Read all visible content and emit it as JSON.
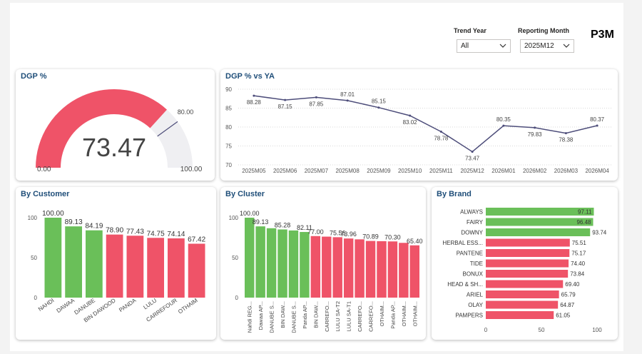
{
  "header": {
    "p3m_label": "P3M",
    "trend_year": {
      "label": "Trend Year",
      "value": "All"
    },
    "reporting_month": {
      "label": "Reporting Month",
      "value": "2025M12"
    }
  },
  "colors": {
    "green": "#6abf59",
    "red": "#ef5368",
    "gauge_track": "#efeff2",
    "line": "#4d4d7a",
    "title": "#1f4e79"
  },
  "gauge": {
    "title": "DGP %",
    "value": 73.47,
    "value_label": "73.47",
    "min_label": "0.00",
    "max_label": "100.00",
    "target_label": "80.00",
    "min": 0,
    "max": 100,
    "target": 80
  },
  "chart_data": [
    {
      "type": "line",
      "title": "DGP % vs YA",
      "x": [
        "2025M05",
        "2025M06",
        "2025M07",
        "2025M08",
        "2025M09",
        "2025M10",
        "2025M11",
        "2025M12",
        "2026M01",
        "2026M02",
        "2026M03",
        "2026M04"
      ],
      "values": [
        88.28,
        87.15,
        87.85,
        87.01,
        85.15,
        83.02,
        78.78,
        73.47,
        80.35,
        79.83,
        78.38,
        80.37
      ],
      "labels": [
        "88.28",
        "87.15",
        "87.85",
        "87.01",
        "85.15",
        "83.02",
        "78.78",
        "73.47",
        "80.35",
        "79.83",
        "78.38",
        "80.37"
      ],
      "yticks": [
        "90",
        "85",
        "80",
        "75",
        "70"
      ],
      "ylim": [
        70,
        90
      ],
      "grid": true
    },
    {
      "type": "bar",
      "title": "By Customer",
      "categories": [
        "NAHDI",
        "DAWAA",
        "DANUBE",
        "BIN DAWOOD",
        "PANDA",
        "LULU",
        "CARREFOUR",
        "OTHAIM"
      ],
      "values": [
        100.0,
        89.13,
        84.19,
        78.9,
        77.43,
        74.75,
        74.14,
        67.42
      ],
      "labels": [
        "100.00",
        "89.13",
        "84.19",
        "78.90",
        "77.43",
        "74.75",
        "74.14",
        "67.42"
      ],
      "colors": [
        "green",
        "green",
        "green",
        "red",
        "red",
        "red",
        "red",
        "red"
      ],
      "yticks": [
        "100",
        "50",
        "0"
      ],
      "ylim": [
        0,
        100
      ]
    },
    {
      "type": "bar",
      "title": "By Cluster",
      "categories": [
        "Nahdi REG...",
        "Dawaa AP...",
        "DANUBE S...",
        "BIN DAW...",
        "DANUBE S...",
        "Panda AP...",
        "BIN DAW...",
        "CARREFO...",
        "LULU SA-T2",
        "LULU SA-T1",
        "CARREFO...",
        "CARREFO...",
        "OTHAIM...",
        "Panda AP...",
        "OTHAIM...",
        "OTHAIM..."
      ],
      "values": [
        100.0,
        89.13,
        86.8,
        85.28,
        84.0,
        82.11,
        77.0,
        76.3,
        75.56,
        73.96,
        72.9,
        70.89,
        70.6,
        70.3,
        68.5,
        65.4
      ],
      "labels": [
        "100.00",
        "89.13",
        "",
        "85.28",
        "",
        "82.11",
        "77.00",
        "",
        "75.56",
        "73.96",
        "",
        "70.89",
        "",
        "70.30",
        "",
        "65.40"
      ],
      "colors": [
        "green",
        "green",
        "green",
        "green",
        "green",
        "green",
        "red",
        "red",
        "red",
        "red",
        "red",
        "red",
        "red",
        "red",
        "red",
        "red"
      ],
      "yticks": [
        "100",
        "50",
        "0"
      ],
      "ylim": [
        0,
        100
      ]
    },
    {
      "type": "bar",
      "orientation": "horizontal",
      "title": "By Brand",
      "categories": [
        "ALWAYS",
        "FAIRY",
        "DOWNY",
        "HERBAL ESS...",
        "PANTENE",
        "TIDE",
        "BONUX",
        "HEAD & SH...",
        "ARIEL",
        "OLAY",
        "PAMPERS"
      ],
      "values": [
        97.11,
        96.48,
        93.74,
        75.51,
        75.17,
        74.4,
        73.84,
        69.4,
        65.79,
        64.87,
        61.05
      ],
      "labels": [
        "97.11",
        "96.48",
        "93.74",
        "75.51",
        "75.17",
        "74.40",
        "73.84",
        "69.40",
        "65.79",
        "64.87",
        "61.05"
      ],
      "colors": [
        "green",
        "green",
        "green",
        "red",
        "red",
        "red",
        "red",
        "red",
        "red",
        "red",
        "red"
      ],
      "xticks": [
        "0",
        "50",
        "100"
      ],
      "xlim": [
        0,
        100
      ]
    }
  ]
}
